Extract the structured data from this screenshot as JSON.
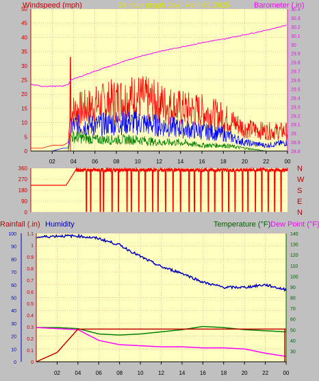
{
  "header": {
    "left_label": "Windspeed (mph)",
    "center_title": "24 hour graph day : April 01 2025",
    "right_label": "Barometer (.in)"
  },
  "colors": {
    "background": "#c0c0c0",
    "plot_bg": "#ffffc0",
    "grid": "#ff8080",
    "wind_gust": "#ff0000",
    "wind_avg": "#0000ff",
    "wind_low": "#008000",
    "barometer": "#ff00ff",
    "direction": "#ff0000",
    "humidity": "#0000c0",
    "temperature": "#008000",
    "dew_point": "#ff00ff",
    "rainfall": "#c00000",
    "axis_red_text": "#c00000",
    "axis_blue_text": "#0000c0",
    "axis_green_text": "#006000",
    "axis_magenta_text": "#ff00ff"
  },
  "x_ticks": [
    "02",
    "04",
    "06",
    "08",
    "10",
    "12",
    "14",
    "16",
    "18",
    "20",
    "22",
    "00"
  ],
  "direction_letters": [
    "N",
    "W",
    "S",
    "E",
    "N"
  ],
  "lower_header": {
    "rainfall_label": "Rainfall (.in)",
    "humidity_label": "Humidity",
    "temperature_label": "Temperature (°F)",
    "dewpoint_label": "Dew Point (°F)"
  },
  "chart_data": [
    {
      "type": "line",
      "panel": "wind",
      "ylabel": "Windspeed (mph)",
      "y2label": "Barometer (.in)",
      "ylim": [
        0,
        50
      ],
      "y_ticks": [
        "0",
        "5",
        "10",
        "15",
        "20",
        "25",
        "30",
        "35",
        "40",
        "45",
        "50"
      ],
      "y2lim": [
        28.8,
        30.4
      ],
      "y2_ticks": [
        "28.8",
        "28.9",
        "29",
        "29.1",
        "29.2",
        "29.3",
        "29.4",
        "29.5",
        "29.6",
        "29.7",
        "29.8",
        "29.9",
        "30",
        "30.1",
        "30.2",
        "30.3",
        "30.4"
      ],
      "x_hours": [
        0,
        1,
        2,
        3,
        3.5,
        3.7,
        4,
        6,
        8,
        10,
        12,
        14,
        16,
        18,
        20,
        22,
        24
      ],
      "series": [
        {
          "name": "gust",
          "values": [
            1,
            1,
            2,
            2,
            3,
            14,
            14,
            16,
            18,
            19,
            17,
            15,
            14,
            12,
            8,
            7,
            7
          ]
        },
        {
          "name": "average",
          "values": [
            0,
            0,
            0,
            1,
            1,
            8,
            9,
            9,
            10,
            10,
            9,
            8,
            7,
            6,
            3,
            2,
            3
          ]
        },
        {
          "name": "low",
          "values": [
            0,
            0,
            0,
            0,
            0,
            5,
            5,
            4,
            4,
            4,
            3,
            3,
            2,
            2,
            1,
            0,
            0
          ]
        },
        {
          "name": "barometer",
          "axis": "right",
          "values": [
            29.55,
            29.53,
            29.53,
            29.53,
            29.55,
            29.6,
            29.61,
            29.7,
            29.78,
            29.86,
            29.92,
            29.97,
            30.02,
            30.06,
            30.11,
            30.16,
            30.22
          ]
        }
      ],
      "spike": {
        "hour": 3.7,
        "value": 33
      }
    },
    {
      "type": "line",
      "panel": "direction",
      "ylim": [
        0,
        360
      ],
      "y_ticks": [
        "0",
        "90",
        "180",
        "270",
        "360"
      ],
      "typical_value": 345,
      "pre_04_value": 220,
      "dips_hours": [
        5.2,
        5.6,
        6.5,
        6.8,
        7.6,
        8.2,
        9.0,
        9.4,
        10.1,
        10.7,
        11.4,
        11.9,
        12.6,
        13.3,
        14.0,
        14.8,
        15.3,
        15.9,
        16.6,
        17.2,
        17.9,
        18.5,
        19.1,
        19.8,
        20.3,
        21.0,
        21.6,
        22.2,
        22.8,
        23.4
      ]
    },
    {
      "type": "line",
      "panel": "temperature",
      "ylabel_left": "Rainfall (.in)",
      "ylabel_left2": "Humidity",
      "ylabel_right": "Temperature (°F) Dew Point (°F)",
      "hum_ylim": [
        0,
        100
      ],
      "hum_ticks": [
        "0",
        "10",
        "20",
        "30",
        "40",
        "50",
        "60",
        "70",
        "80",
        "90",
        "100"
      ],
      "rain_ylim": [
        0,
        1.1
      ],
      "rain_ticks": [
        "0",
        "0.1",
        "0.2",
        "0.3",
        "0.4",
        "0.5",
        "0.6",
        "0.7",
        "0.8",
        "0.9",
        "1",
        "1.1"
      ],
      "temp_ylim": [
        20,
        140
      ],
      "temp_ticks": [
        "30",
        "40",
        "50",
        "60",
        "70",
        "80",
        "90",
        "100",
        "110",
        "120",
        "130",
        "140"
      ],
      "x_hours": [
        0,
        2,
        4,
        6,
        8,
        10,
        12,
        14,
        16,
        18,
        20,
        22,
        24
      ],
      "series": [
        {
          "name": "Humidity",
          "axis": "hum",
          "values": [
            97,
            98,
            98,
            96,
            91,
            82,
            74,
            69,
            62,
            58,
            58,
            60,
            56
          ]
        },
        {
          "name": "Temperature (°F)",
          "axis": "temp",
          "values": [
            52,
            52,
            51,
            46,
            45,
            46,
            48,
            50,
            53,
            52,
            50,
            49,
            48
          ]
        },
        {
          "name": "Dew Point (°F)",
          "axis": "temp",
          "values": [
            52,
            51,
            50,
            40,
            36,
            35,
            34,
            34,
            33,
            33,
            32,
            28,
            25
          ]
        },
        {
          "name": "Rainfall (.in)",
          "axis": "rain",
          "values": [
            0,
            0.08,
            0.28,
            0.28,
            0.28,
            0.28,
            0.28,
            0.28,
            0.28,
            0.28,
            0.28,
            0.28,
            0.28
          ]
        }
      ]
    }
  ]
}
